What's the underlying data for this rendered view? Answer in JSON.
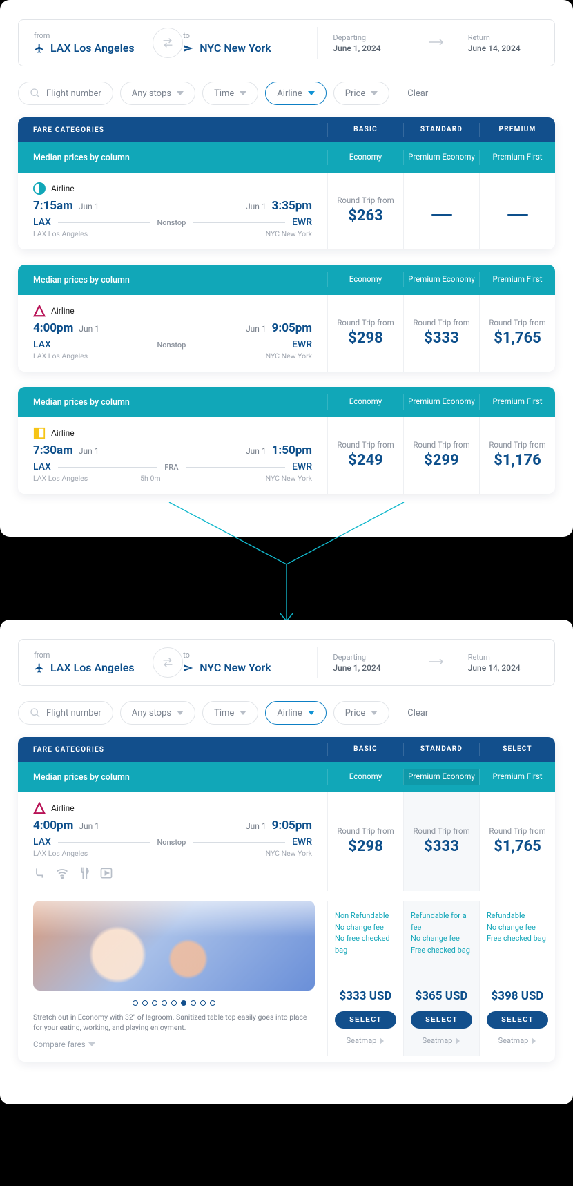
{
  "search": {
    "from_label": "from",
    "to_label": "to",
    "from_code": "LAX Los Angeles",
    "to_code": "NYC New York",
    "departing_label": "Departing",
    "departing_value": "June 1, 2024",
    "return_label": "Return",
    "return_value": "June 14, 2024"
  },
  "filters": {
    "flight_number": "Flight number",
    "any_stops": "Any stops",
    "time": "Time",
    "airline": "Airline",
    "price": "Price",
    "clear": "Clear"
  },
  "fare_head": {
    "title": "FARE CATEGORIES",
    "basic": "BASIC",
    "standard": "STANDARD",
    "premium": "PREMIUM",
    "select": "SELECT",
    "median": "Median prices by column",
    "col1": "Economy",
    "col2": "Premium Economy",
    "col3": "Premium First"
  },
  "flights": [
    {
      "airline": "Airline",
      "logo_color": "#11a7b8",
      "logo_shape": "half",
      "dep_time": "7:15am",
      "dep_date": "Jun 1",
      "arr_time": "3:35pm",
      "arr_date": "Jun 1",
      "from": "LAX",
      "to": "EWR",
      "stops": "Nonstop",
      "from_full": "LAX Los Angeles",
      "to_full": "NYC New York",
      "rt_label": "Round Trip from",
      "p1": "$263",
      "p2": null,
      "p3": null
    },
    {
      "airline": "Airline",
      "logo_color": "#b81256",
      "logo_shape": "triangle",
      "dep_time": "4:00pm",
      "dep_date": "Jun 1",
      "arr_time": "9:05pm",
      "arr_date": "Jun 1",
      "from": "LAX",
      "to": "EWR",
      "stops": "Nonstop",
      "from_full": "LAX Los Angeles",
      "to_full": "NYC New York",
      "rt_label": "Round Trip from",
      "p1": "$298",
      "p2": "$333",
      "p3": "$1,765"
    },
    {
      "airline": "Airline",
      "logo_color": "#f6c416",
      "logo_shape": "square",
      "dep_time": "7:30am",
      "dep_date": "Jun 1",
      "arr_time": "1:50pm",
      "arr_date": "Jun 1",
      "from": "LAX",
      "to": "EWR",
      "stops": "FRA",
      "stops_sub": "5h 0m",
      "from_full": "LAX Los Angeles",
      "to_full": "NYC New York",
      "rt_label": "Round Trip from",
      "p1": "$249",
      "p2": "$299",
      "p3": "$1,176"
    }
  ],
  "detail": {
    "flight": {
      "airline": "Airline",
      "logo_color": "#b81256",
      "logo_shape": "triangle",
      "dep_time": "4:00pm",
      "dep_date": "Jun 1",
      "arr_time": "9:05pm",
      "arr_date": "Jun 1",
      "from": "LAX",
      "to": "EWR",
      "stops": "Nonstop",
      "from_full": "LAX Los Angeles",
      "to_full": "NYC New York",
      "rt_label": "Round Trip from",
      "p1": "$298",
      "p2": "$333",
      "p3": "$1,765"
    },
    "promo": "Stretch out in Economy with 32\" of legroom. Sanitized table top easily goes into place for your eating, working, and playing enjoyment.",
    "compare": "Compare fares",
    "dots_total": 9,
    "dots_active": 5,
    "cols": [
      {
        "f1": "Non Refundable",
        "f2": "No change fee",
        "f3": "No free checked bag",
        "price": "$333 USD",
        "btn": "SELECT",
        "seat": "Seatmap",
        "shade": false
      },
      {
        "f1": "Refundable for a fee",
        "f2": "No change fee",
        "f3": "Free checked bag",
        "price": "$365 USD",
        "btn": "SELECT",
        "seat": "Seatmap",
        "shade": true
      },
      {
        "f1": "Refundable",
        "f2": "No change fee",
        "f3": "Free checked bag",
        "price": "$398 USD",
        "btn": "SELECT",
        "seat": "Seatmap",
        "shade": false
      }
    ]
  }
}
